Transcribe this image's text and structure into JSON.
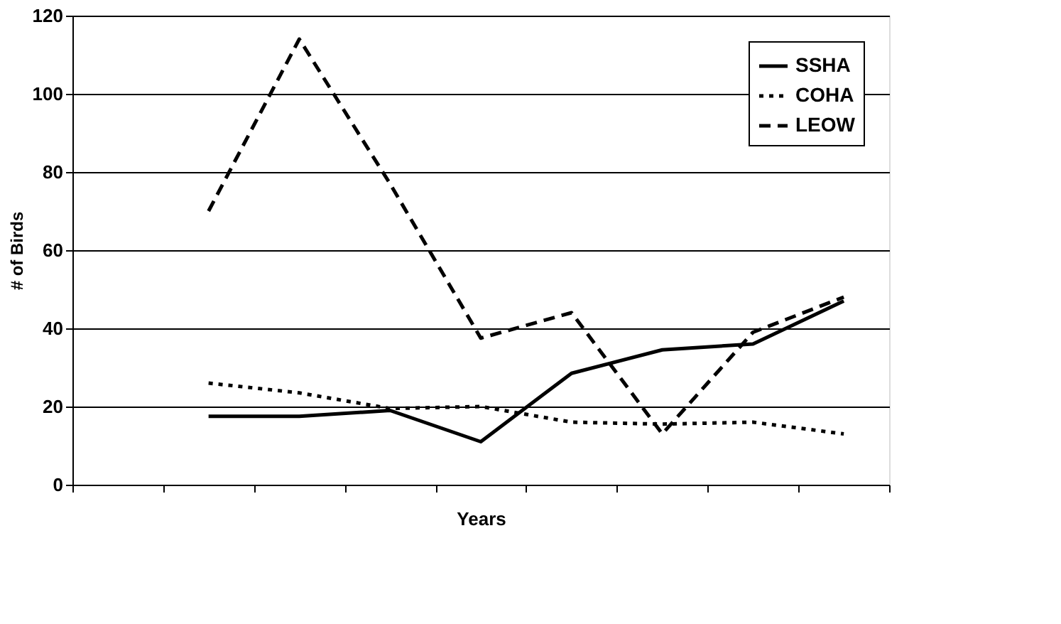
{
  "chart_data": {
    "type": "line",
    "xlabel": "Years",
    "ylabel": "# of Birds",
    "categories": [
      null,
      null,
      null,
      null,
      null,
      null,
      null,
      null,
      null
    ],
    "series": [
      {
        "name": "SSHA",
        "color": "#000000",
        "line_style": "solid",
        "values": [
          null,
          17.5,
          17.5,
          19,
          11,
          28.5,
          34.5,
          36,
          47
        ]
      },
      {
        "name": "COHA",
        "color": "#000000",
        "line_style": "dotted",
        "values": [
          null,
          26,
          23.5,
          19.5,
          20,
          16,
          15.5,
          16,
          13
        ]
      },
      {
        "name": "LEOW",
        "color": "#000000",
        "line_style": "dashed",
        "values": [
          null,
          70,
          114,
          77,
          37.5,
          44,
          13,
          39,
          48
        ]
      }
    ],
    "ylim": [
      0,
      120
    ],
    "yticks": [
      0,
      20,
      40,
      60,
      80,
      100,
      120
    ],
    "grid": "y",
    "legend": "top right",
    "marker": "none"
  }
}
